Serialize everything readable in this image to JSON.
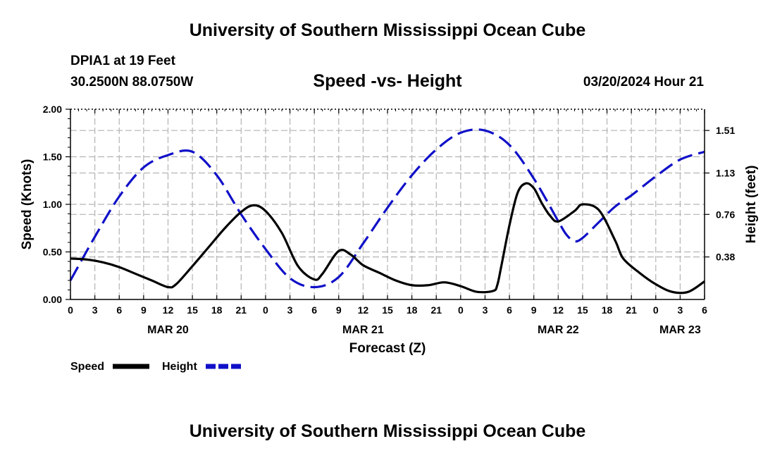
{
  "page": {
    "title": "University of Southern Mississippi Ocean Cube",
    "footer_title": "University of Southern Mississippi Ocean Cube",
    "station": "DPIA1 at 19 Feet",
    "coordinates": "30.2500N  88.0750W",
    "subtitle": "Speed -vs- Height",
    "datetime": "03/20/2024 Hour 21"
  },
  "chart_data": {
    "type": "line",
    "title": "Speed -vs- Height",
    "xlabel": "Forecast (Z)",
    "ylabel": "Speed (Knots)",
    "y2label": "Height (feet)",
    "xlim": [
      0,
      78
    ],
    "ylim": [
      0,
      2.0
    ],
    "y2lim": [
      0,
      1.7
    ],
    "grid": true,
    "x_ticks": [
      0,
      3,
      6,
      9,
      12,
      15,
      18,
      21,
      24,
      27,
      30,
      33,
      36,
      39,
      42,
      45,
      48,
      51,
      54,
      57,
      60,
      63,
      66,
      69,
      72,
      75,
      78
    ],
    "x_tick_labels": [
      "0",
      "3",
      "6",
      "9",
      "12",
      "15",
      "18",
      "21",
      "0",
      "3",
      "6",
      "9",
      "12",
      "15",
      "18",
      "21",
      "0",
      "3",
      "6",
      "9",
      "12",
      "15",
      "18",
      "21",
      "0",
      "3",
      "6"
    ],
    "date_labels": [
      {
        "hour": 12,
        "label": "MAR 20"
      },
      {
        "hour": 36,
        "label": "MAR 21"
      },
      {
        "hour": 60,
        "label": "MAR 22"
      },
      {
        "hour": 75,
        "label": "MAR 23"
      }
    ],
    "y_ticks": [
      0.0,
      0.5,
      1.0,
      1.5,
      2.0
    ],
    "y_tick_labels": [
      "0.00",
      "0.50",
      "1.00",
      "1.50",
      "2.00"
    ],
    "y2_ticks": [
      0.38,
      0.76,
      1.13,
      1.51
    ],
    "y2_tick_labels": [
      "0.38",
      "0.76",
      "1.13",
      "1.51"
    ],
    "series": [
      {
        "name": "Speed",
        "axis": "left",
        "color": "#000000",
        "dash": "solid",
        "x": [
          0,
          2,
          4,
          6,
          8,
          10,
          12,
          13,
          15,
          17,
          19,
          21,
          22.5,
          24,
          26,
          28,
          30,
          31,
          33,
          34.5,
          36,
          38,
          40,
          42,
          44,
          46,
          48,
          50,
          52,
          52.5,
          53,
          54,
          55,
          56,
          57,
          58,
          59,
          60,
          62,
          63,
          65,
          67,
          68,
          70,
          72,
          74,
          76,
          78
        ],
        "values": [
          0.43,
          0.42,
          0.39,
          0.34,
          0.27,
          0.2,
          0.13,
          0.16,
          0.35,
          0.55,
          0.75,
          0.92,
          0.99,
          0.93,
          0.7,
          0.35,
          0.21,
          0.27,
          0.51,
          0.47,
          0.36,
          0.28,
          0.2,
          0.15,
          0.15,
          0.18,
          0.14,
          0.08,
          0.09,
          0.15,
          0.35,
          0.78,
          1.12,
          1.22,
          1.17,
          1.01,
          0.88,
          0.82,
          0.93,
          1.0,
          0.94,
          0.62,
          0.43,
          0.28,
          0.16,
          0.08,
          0.08,
          0.19
        ]
      },
      {
        "name": "Height",
        "axis": "right",
        "color": "#1010c8",
        "dash": "dashed",
        "x": [
          0,
          3,
          6,
          9,
          12,
          15,
          18,
          21,
          24,
          27,
          30,
          33,
          36,
          39,
          42,
          45,
          48,
          51,
          54,
          57,
          60,
          61,
          62,
          63,
          65,
          67,
          69,
          72,
          75,
          78
        ],
        "values": [
          0.17,
          0.56,
          0.92,
          1.18,
          1.29,
          1.32,
          1.11,
          0.76,
          0.45,
          0.19,
          0.11,
          0.2,
          0.5,
          0.82,
          1.11,
          1.34,
          1.49,
          1.51,
          1.38,
          1.08,
          0.7,
          0.58,
          0.52,
          0.55,
          0.69,
          0.83,
          0.93,
          1.1,
          1.25,
          1.32
        ]
      }
    ],
    "legend": [
      {
        "label": "Speed",
        "color": "#000000",
        "dash": "solid"
      },
      {
        "label": "Height",
        "color": "#1010c8",
        "dash": "dashed"
      }
    ],
    "legend_position": "bottom-left"
  }
}
